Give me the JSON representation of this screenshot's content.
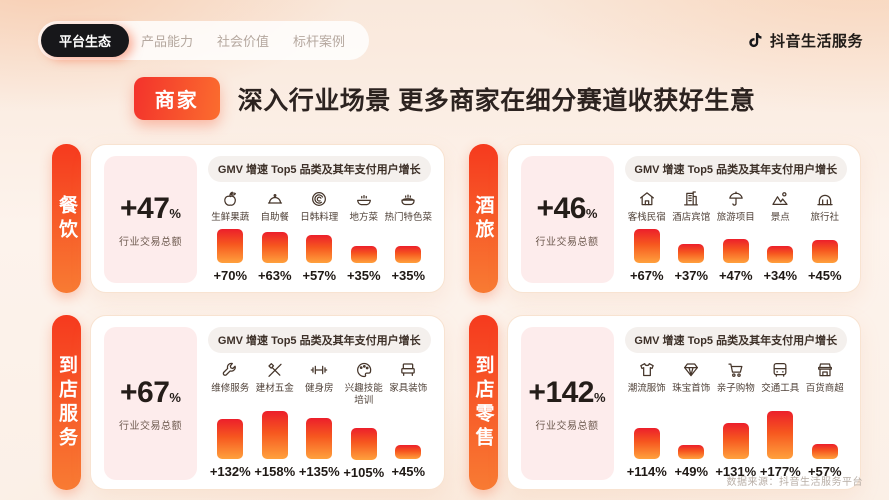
{
  "slide": {
    "nav": {
      "items": [
        {
          "label": "平台生态",
          "active": true
        },
        {
          "label": "产品能力",
          "active": false
        },
        {
          "label": "社会价值",
          "active": false
        },
        {
          "label": "标杆案例",
          "active": false
        }
      ]
    },
    "brand": {
      "icon": "tiktok-note-icon",
      "name": "抖音生活服务"
    },
    "headline": {
      "badge": "商家",
      "title": "深入行业场景 更多商家在细分赛道收获好生意"
    },
    "footer": {
      "source": "数据来源：抖音生活服务平台"
    },
    "colors": {
      "accent_red": "#f63a1e",
      "accent_orange": "#f87b33",
      "bar_gradient_top": "#ec1f2b",
      "bar_gradient_bottom": "#ffa13d",
      "nav_active_bg": "#17171a",
      "stat_box_bg": "#fdecec",
      "card_bg": "#ffffff"
    }
  },
  "chart_data": [
    {
      "type": "bar",
      "section": "餐饮",
      "total_growth": "+47",
      "total_unit": "%",
      "total_label": "行业交易总额",
      "title": "GMV 增速 Top5 品类及其年支付用户增长",
      "categories": [
        "生鲜果蔬",
        "自助餐",
        "日韩料理",
        "地方菜",
        "热门特色菜"
      ],
      "values": [
        70,
        63,
        57,
        35,
        35
      ],
      "value_labels": [
        "+70%",
        "+63%",
        "+57%",
        "+35%",
        "+35%"
      ],
      "icons": [
        "apple-icon",
        "cloche-icon",
        "plate-icon",
        "steam-bowl-icon",
        "hotpot-icon"
      ]
    },
    {
      "type": "bar",
      "section": "酒旅",
      "total_growth": "+46",
      "total_unit": "%",
      "total_label": "行业交易总额",
      "title": "GMV 增速 Top5 品类及其年支付用户增长",
      "categories": [
        "客栈民宿",
        "酒店宾馆",
        "旅游项目",
        "景点",
        "旅行社"
      ],
      "values": [
        67,
        37,
        47,
        34,
        45
      ],
      "value_labels": [
        "+67%",
        "+37%",
        "+47%",
        "+34%",
        "+45%"
      ],
      "icons": [
        "inn-icon",
        "hotel-icon",
        "beach-umbrella-icon",
        "mountain-icon",
        "arch-gate-icon"
      ]
    },
    {
      "type": "bar",
      "section": "到店服务",
      "total_growth": "+67",
      "total_unit": "%",
      "total_label": "行业交易总额",
      "title": "GMV 增速 Top5 品类及其年支付用户增长",
      "categories": [
        "维修服务",
        "建材五金",
        "健身房",
        "兴趣技能培训",
        "家具装饰"
      ],
      "values": [
        132,
        158,
        135,
        105,
        45
      ],
      "value_labels": [
        "+132%",
        "+158%",
        "+135%",
        "+105%",
        "+45%"
      ],
      "icons": [
        "wrench-icon",
        "tools-icon",
        "dumbbell-icon",
        "palette-icon",
        "furniture-icon"
      ]
    },
    {
      "type": "bar",
      "section": "到店零售",
      "total_growth": "+142",
      "total_unit": "%",
      "total_label": "行业交易总额",
      "title": "GMV 增速 Top5 品类及其年支付用户增长",
      "categories": [
        "潮流服饰",
        "珠宝首饰",
        "亲子购物",
        "交通工具",
        "百货商超"
      ],
      "values": [
        114,
        49,
        131,
        177,
        57
      ],
      "value_labels": [
        "+114%",
        "+49%",
        "+131%",
        "+177%",
        "+57%"
      ],
      "icons": [
        "tshirt-icon",
        "diamond-icon",
        "cart-icon",
        "bus-icon",
        "storefront-icon"
      ]
    }
  ]
}
